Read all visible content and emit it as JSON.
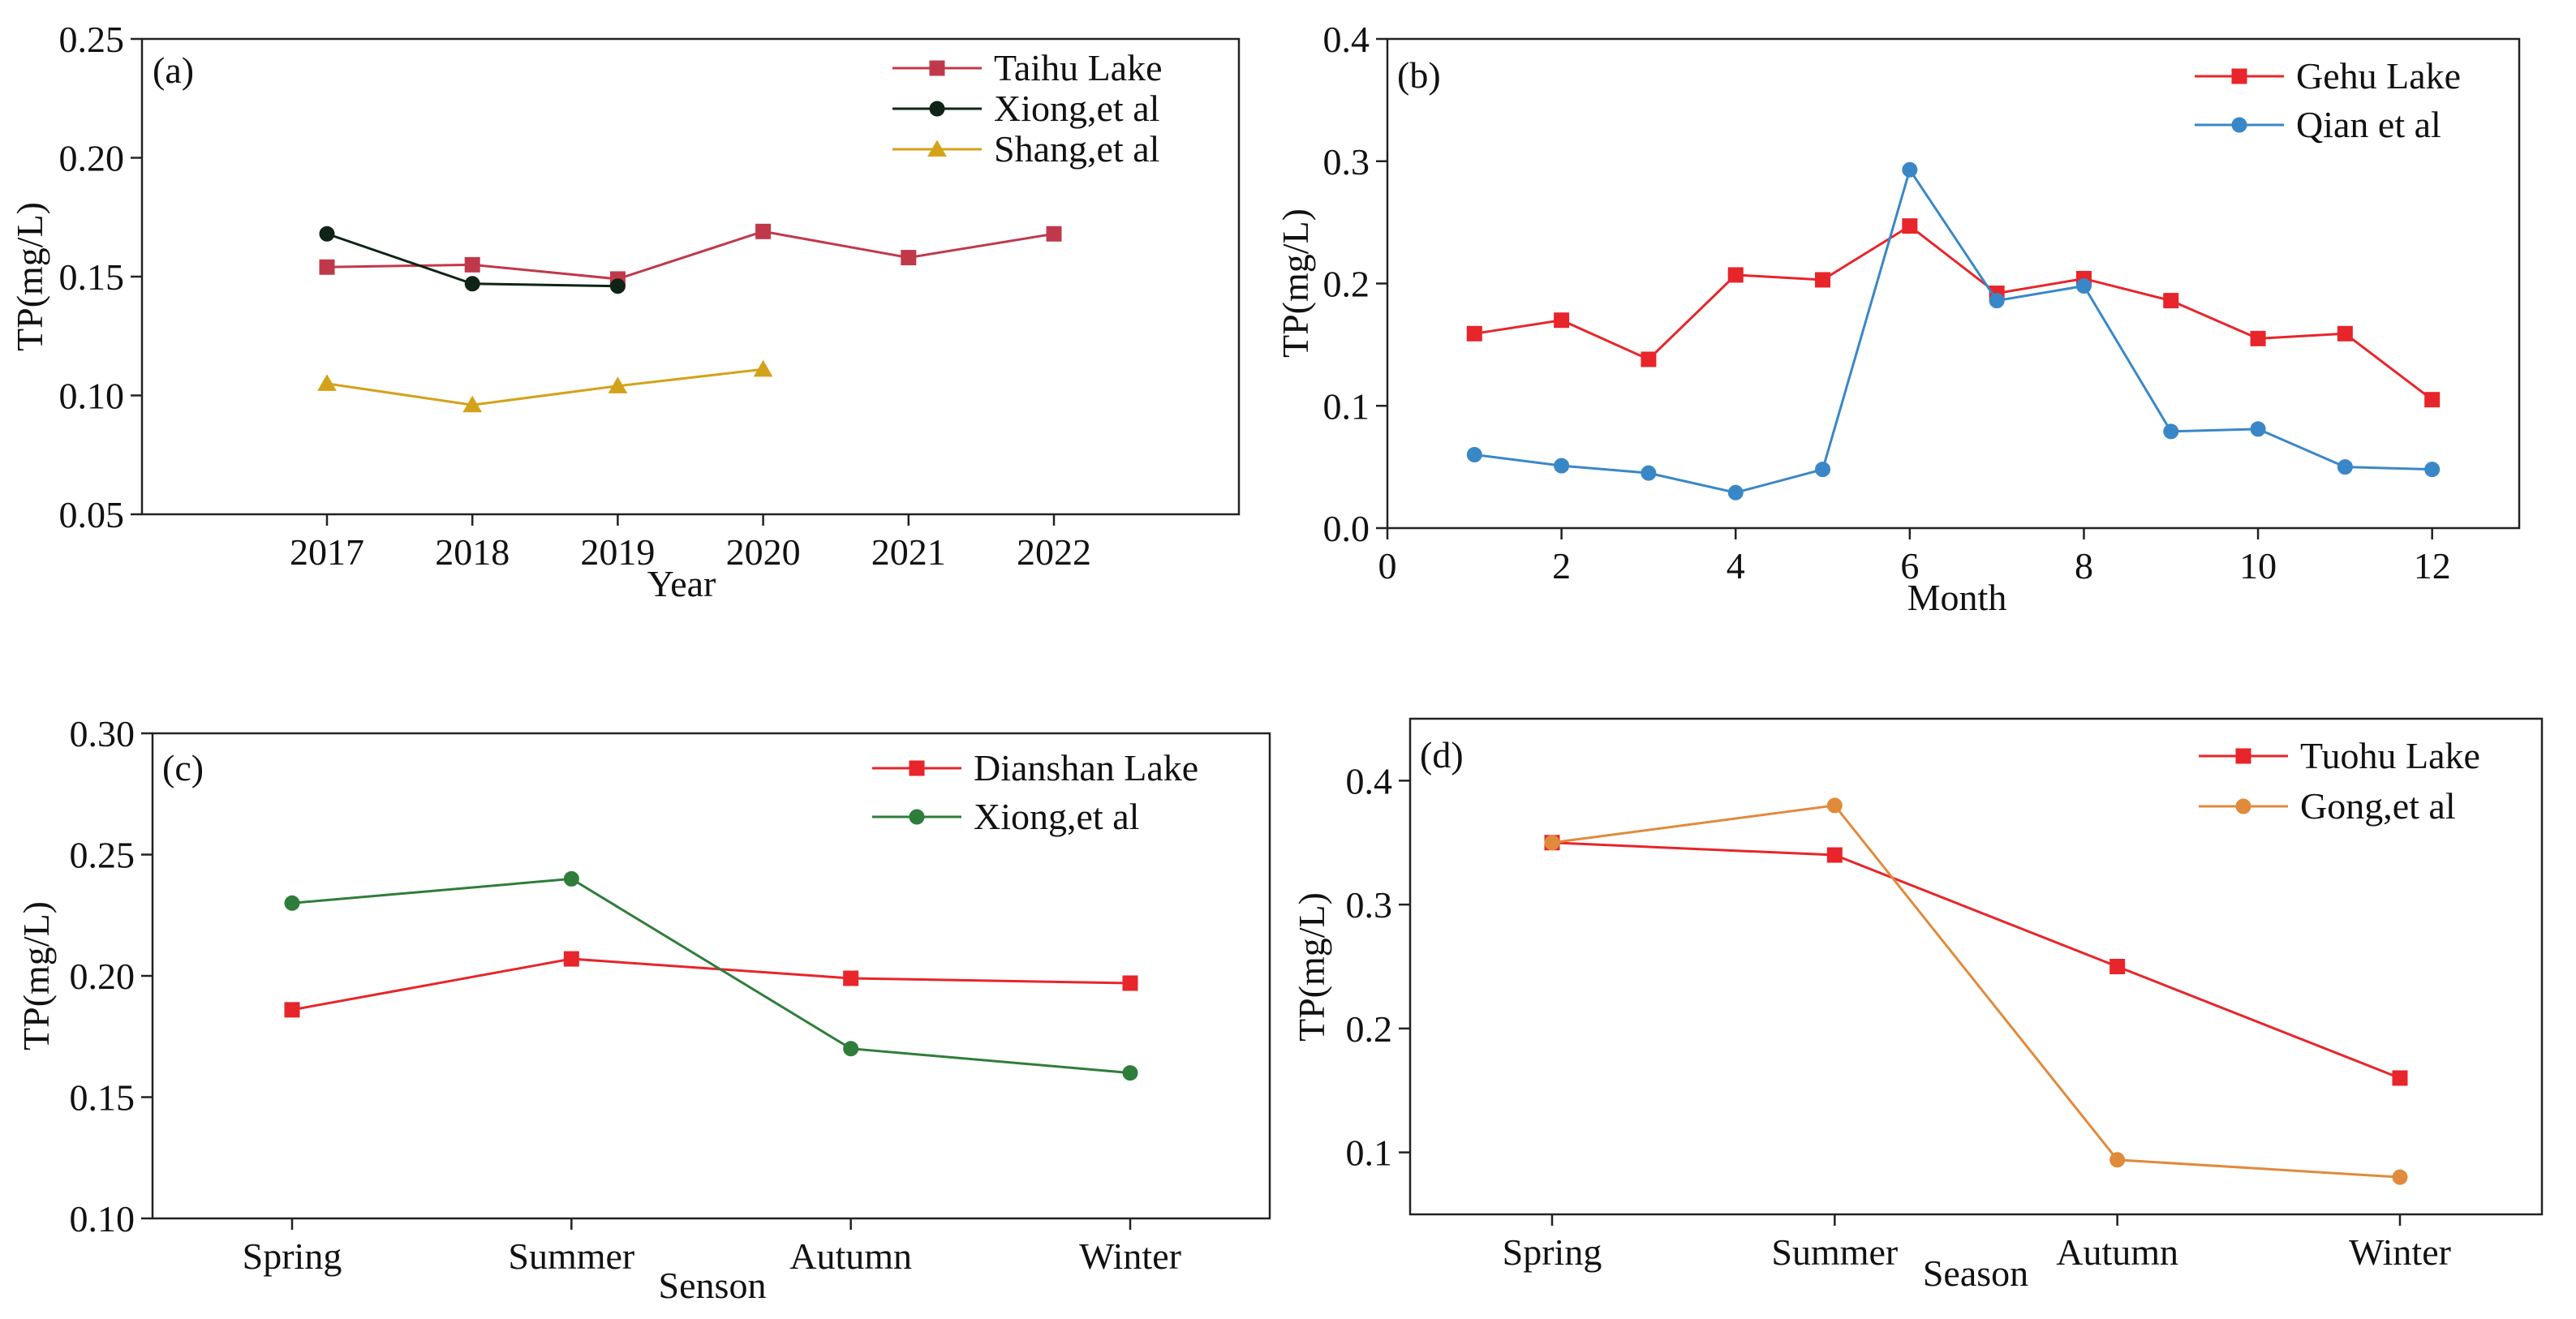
{
  "chart_data": [
    {
      "panel_label": "(a)",
      "type": "line",
      "xlabel": "Year",
      "ylabel": "TP(mg/L)",
      "categories": [
        "2017",
        "2018",
        "2019",
        "2020",
        "2021",
        "2022"
      ],
      "ylim": [
        0.05,
        0.25
      ],
      "yticks": [
        "0.05",
        "0.10",
        "0.15",
        "0.20",
        "0.25"
      ],
      "legend_position": "top-right",
      "series": [
        {
          "name": "Taihu Lake",
          "color": "#c0394b",
          "marker": "square",
          "values": [
            0.154,
            0.155,
            0.149,
            0.169,
            0.158,
            0.168
          ]
        },
        {
          "name": "Xiong,et al",
          "color": "#0f2416",
          "marker": "circle",
          "values": [
            0.168,
            0.147,
            0.146,
            null,
            null,
            null
          ]
        },
        {
          "name": "Shang,et al",
          "color": "#d4a21a",
          "marker": "triangle",
          "values": [
            0.105,
            0.096,
            0.104,
            0.111,
            null,
            null
          ]
        }
      ]
    },
    {
      "panel_label": "(b)",
      "type": "line",
      "xlabel": "Month",
      "ylabel": "TP(mg/L)",
      "xlim": [
        0,
        13
      ],
      "xticks": [
        "0",
        "2",
        "4",
        "6",
        "8",
        "10",
        "12"
      ],
      "ylim": [
        0.0,
        0.4
      ],
      "yticks": [
        "0.0",
        "0.1",
        "0.2",
        "0.3",
        "0.4"
      ],
      "legend_position": "top-right",
      "series": [
        {
          "name": "Gehu Lake",
          "color": "#e8252a",
          "marker": "square",
          "x": [
            1,
            2,
            3,
            4,
            5,
            6,
            7,
            8,
            9,
            10,
            11,
            12
          ],
          "values": [
            0.159,
            0.17,
            0.138,
            0.207,
            0.203,
            0.247,
            0.192,
            0.204,
            0.186,
            0.155,
            0.159,
            0.105
          ]
        },
        {
          "name": "Qian et al",
          "color": "#3a87c8",
          "marker": "circle",
          "x": [
            1,
            2,
            3,
            4,
            5,
            6,
            7,
            8,
            9,
            10,
            11,
            12
          ],
          "values": [
            0.06,
            0.051,
            0.045,
            0.029,
            0.048,
            0.293,
            0.186,
            0.198,
            0.079,
            0.081,
            0.05,
            0.048
          ]
        }
      ]
    },
    {
      "panel_label": "(c)",
      "type": "line",
      "xlabel": "Senson",
      "ylabel": "TP(mg/L)",
      "categories": [
        "Spring",
        "Summer",
        "Autumn",
        "Winter"
      ],
      "ylim": [
        0.1,
        0.3
      ],
      "yticks": [
        "0.10",
        "0.15",
        "0.20",
        "0.25",
        "0.30"
      ],
      "legend_position": "top-right",
      "series": [
        {
          "name": "Dianshan Lake",
          "color": "#e8252a",
          "marker": "square",
          "values": [
            0.186,
            0.207,
            0.199,
            0.197
          ]
        },
        {
          "name": "Xiong,et al",
          "color": "#2f7d3a",
          "marker": "circle",
          "values": [
            0.23,
            0.24,
            0.17,
            0.16
          ]
        }
      ]
    },
    {
      "panel_label": "(d)",
      "type": "line",
      "xlabel": "Season",
      "ylabel": "TP(mg/L)",
      "categories": [
        "Spring",
        "Summer",
        "Autumn",
        "Winter"
      ],
      "ylim": [
        0.05,
        0.45
      ],
      "yticks": [
        "0.1",
        "0.2",
        "0.3",
        "0.4"
      ],
      "ytick_values": [
        0.1,
        0.2,
        0.3,
        0.4
      ],
      "legend_position": "top-right",
      "series": [
        {
          "name": "Tuohu Lake",
          "color": "#e8252a",
          "marker": "square",
          "values": [
            0.35,
            0.34,
            0.25,
            0.16
          ]
        },
        {
          "name": "Gong,et al",
          "color": "#e08a3c",
          "marker": "circle",
          "values": [
            0.35,
            0.38,
            0.094,
            0.08
          ]
        }
      ]
    }
  ]
}
